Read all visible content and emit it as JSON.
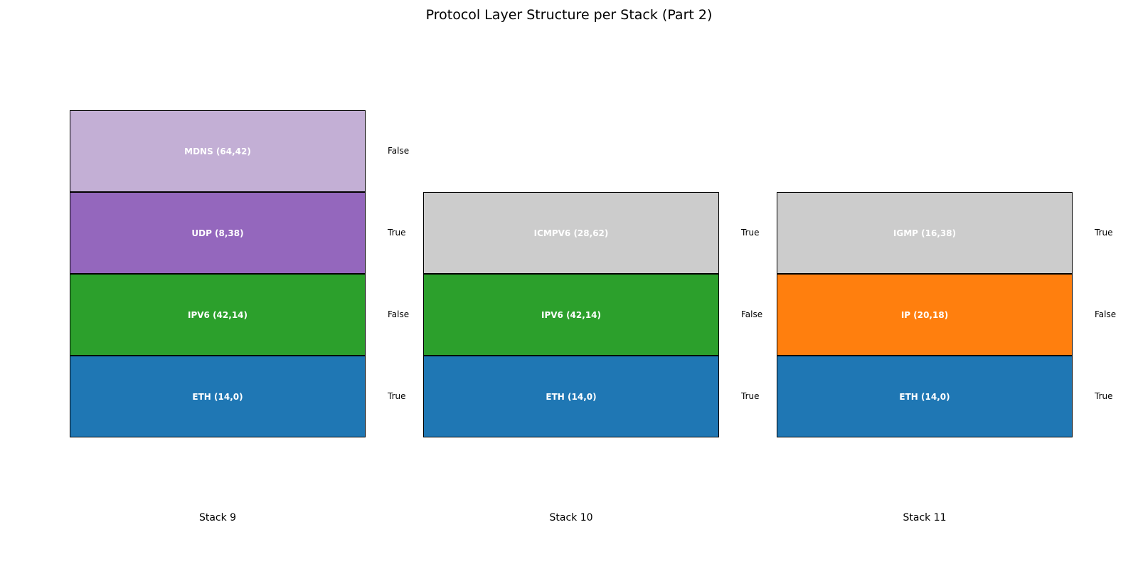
{
  "title": "Protocol Layer Structure per Stack (Part 2)",
  "stacks": [
    {
      "label": "Stack 9",
      "layers": [
        {
          "name": "MDNS (64,42)",
          "flag": "False",
          "color": "#c3afd5"
        },
        {
          "name": "UDP (8,38)",
          "flag": "True",
          "color": "#9467bd"
        },
        {
          "name": "IPV6 (42,14)",
          "flag": "False",
          "color": "#2ca02c"
        },
        {
          "name": "ETH (14,0)",
          "flag": "True",
          "color": "#1f77b4"
        }
      ]
    },
    {
      "label": "Stack 10",
      "layers": [
        {
          "name": "ICMPV6 (28,62)",
          "flag": "True",
          "color": "#cccccc"
        },
        {
          "name": "IPV6 (42,14)",
          "flag": "False",
          "color": "#2ca02c"
        },
        {
          "name": "ETH (14,0)",
          "flag": "True",
          "color": "#1f77b4"
        }
      ]
    },
    {
      "label": "Stack 11",
      "layers": [
        {
          "name": "IGMP (16,38)",
          "flag": "True",
          "color": "#cccccc"
        },
        {
          "name": "IP (20,18)",
          "flag": "False",
          "color": "#ff7f0e"
        },
        {
          "name": "ETH (14,0)",
          "flag": "True",
          "color": "#1f77b4"
        }
      ]
    }
  ]
}
